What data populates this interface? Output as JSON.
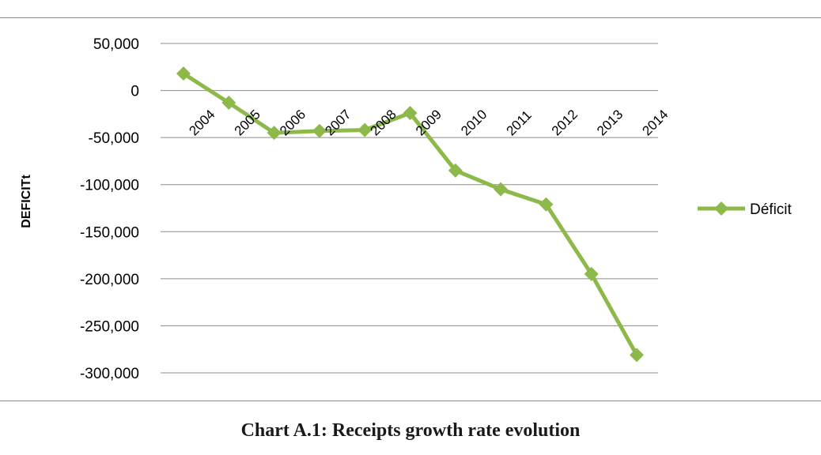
{
  "caption": "Chart A.1: Receipts growth rate evolution",
  "chart_data": {
    "type": "line",
    "title": "",
    "xlabel": "",
    "ylabel": "DEFICITt",
    "categories": [
      "2004",
      "2005",
      "2006",
      "2007",
      "2008",
      "2009",
      "2010",
      "2011",
      "2012",
      "2013",
      "2014"
    ],
    "series": [
      {
        "name": "Déficit",
        "color": "#8db94a",
        "marker": "diamond",
        "values": [
          18000,
          -13000,
          -45000,
          -43000,
          -42000,
          -24000,
          -85000,
          -105000,
          -121000,
          -195000,
          -281000
        ]
      }
    ],
    "ylim": [
      -300000,
      50000
    ],
    "yticks": [
      50000,
      0,
      -50000,
      -100000,
      -150000,
      -200000,
      -250000,
      -300000
    ],
    "ytick_labels": [
      "50,000",
      "0",
      "-50,000",
      "-100,000",
      "-150,000",
      "-200,000",
      "-250,000",
      "-300,000"
    ],
    "grid": "horizontal",
    "legend_position": "right"
  }
}
